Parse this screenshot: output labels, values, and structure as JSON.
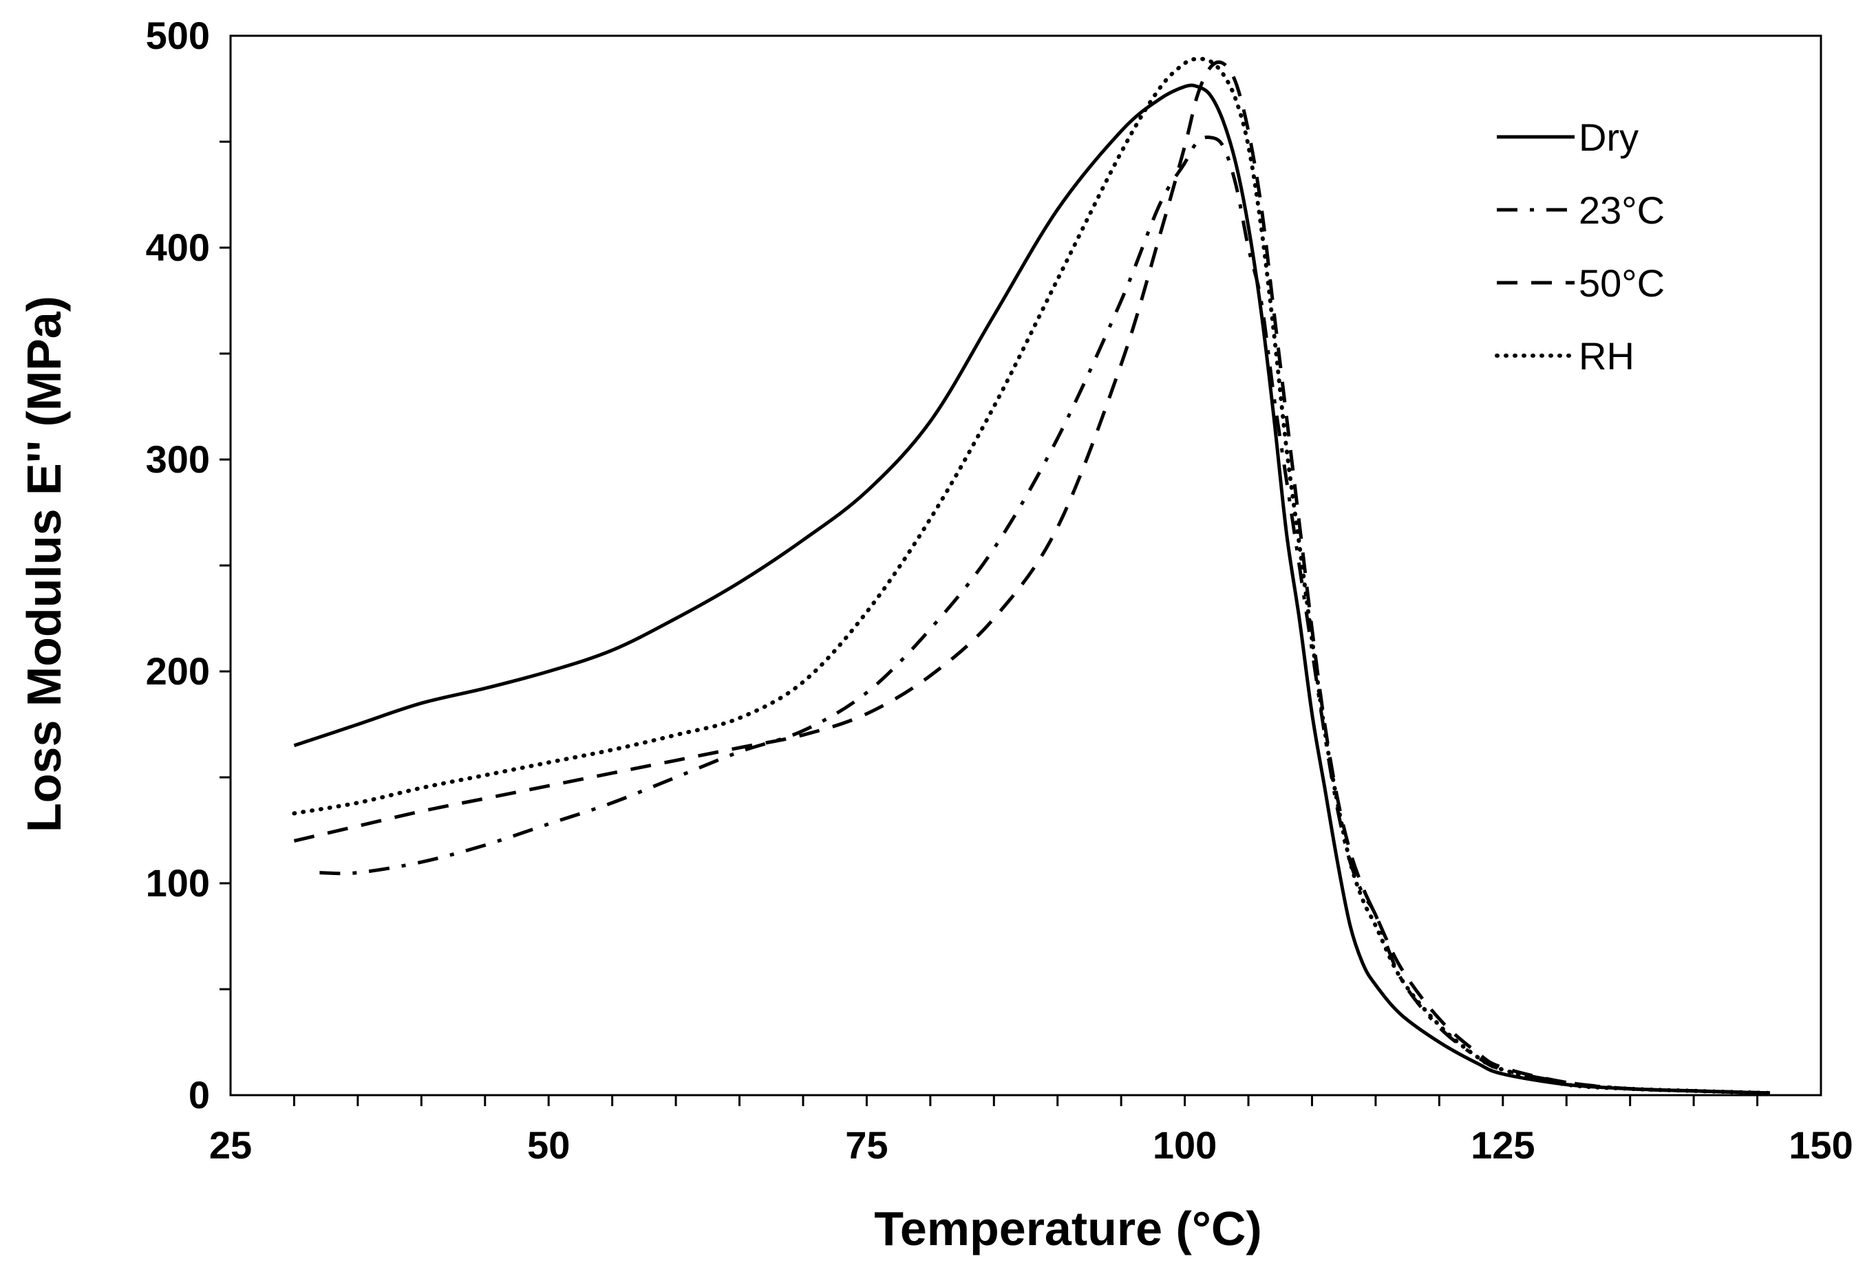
{
  "chart_data": {
    "type": "line",
    "title": "",
    "xlabel": "Temperature (°C)",
    "ylabel": "Loss Modulus E'' (MPa)",
    "xlim": [
      25,
      150
    ],
    "ylim": [
      0,
      500
    ],
    "x_ticks": [
      25,
      50,
      75,
      100,
      125,
      150
    ],
    "x_tick_labels": [
      "25",
      "50",
      "75",
      "100",
      "125",
      "150"
    ],
    "x_minor_step": 5,
    "y_ticks": [
      0,
      100,
      200,
      300,
      400,
      500
    ],
    "y_tick_labels": [
      "0",
      "100",
      "200",
      "300",
      "400",
      "500"
    ],
    "y_minor_step": 50,
    "grid": false,
    "legend_position": "top-right",
    "series": [
      {
        "name": "Dry",
        "style": "solid",
        "x": [
          30,
          35,
          40,
          45,
          50,
          55,
          60,
          65,
          70,
          75,
          80,
          85,
          90,
          95,
          98,
          100,
          101,
          102,
          103,
          104,
          105,
          106,
          107,
          108,
          109,
          110,
          111,
          112,
          113,
          114,
          115,
          117,
          120,
          123,
          125,
          130,
          135,
          140,
          146
        ],
        "y": [
          165,
          175,
          185,
          192,
          200,
          210,
          225,
          242,
          262,
          285,
          318,
          368,
          418,
          455,
          470,
          476,
          476,
          472,
          460,
          440,
          410,
          370,
          320,
          265,
          225,
          180,
          145,
          110,
          80,
          62,
          52,
          38,
          25,
          15,
          10,
          5,
          3,
          2,
          1
        ]
      },
      {
        "name": "23°C",
        "style": "dashdot",
        "x": [
          32,
          35,
          40,
          45,
          50,
          55,
          60,
          65,
          70,
          75,
          80,
          85,
          90,
          95,
          98,
          100,
          101,
          102,
          103,
          104,
          105,
          106,
          107,
          108,
          109,
          110,
          111,
          112,
          113,
          114,
          115,
          117,
          120,
          123,
          125,
          130,
          135,
          140,
          146
        ],
        "y": [
          105,
          105,
          110,
          118,
          128,
          138,
          150,
          162,
          172,
          190,
          220,
          258,
          310,
          375,
          420,
          440,
          450,
          452,
          448,
          430,
          400,
          375,
          330,
          290,
          250,
          210,
          170,
          135,
          110,
          95,
          85,
          55,
          32,
          18,
          12,
          6,
          3,
          2,
          1
        ]
      },
      {
        "name": "50°C",
        "style": "dashed",
        "x": [
          30,
          35,
          40,
          45,
          50,
          55,
          60,
          65,
          70,
          75,
          80,
          85,
          90,
          95,
          98,
          100,
          101,
          102,
          103,
          104,
          105,
          106,
          107,
          108,
          109,
          110,
          111,
          112,
          113,
          114,
          115,
          117,
          120,
          123,
          125,
          130,
          135,
          140,
          146
        ],
        "y": [
          120,
          127,
          134,
          140,
          146,
          152,
          158,
          164,
          170,
          180,
          198,
          225,
          268,
          345,
          405,
          448,
          472,
          485,
          487,
          478,
          455,
          420,
          370,
          320,
          270,
          220,
          175,
          140,
          115,
          98,
          85,
          60,
          36,
          20,
          13,
          6,
          3,
          2,
          1
        ]
      },
      {
        "name": "RH",
        "style": "dotted",
        "x": [
          30,
          35,
          40,
          45,
          50,
          55,
          60,
          65,
          70,
          75,
          80,
          85,
          90,
          95,
          98,
          100,
          101,
          102,
          103,
          104,
          105,
          106,
          107,
          108,
          109,
          110,
          111,
          112,
          113,
          114,
          115,
          117,
          120,
          123,
          125,
          130,
          135,
          140,
          146
        ],
        "y": [
          133,
          138,
          145,
          151,
          157,
          163,
          170,
          178,
          195,
          228,
          272,
          325,
          385,
          445,
          475,
          487,
          489,
          488,
          482,
          470,
          448,
          410,
          360,
          305,
          260,
          215,
          172,
          138,
          110,
          92,
          80,
          55,
          33,
          18,
          12,
          5,
          3,
          2,
          1
        ]
      }
    ]
  }
}
